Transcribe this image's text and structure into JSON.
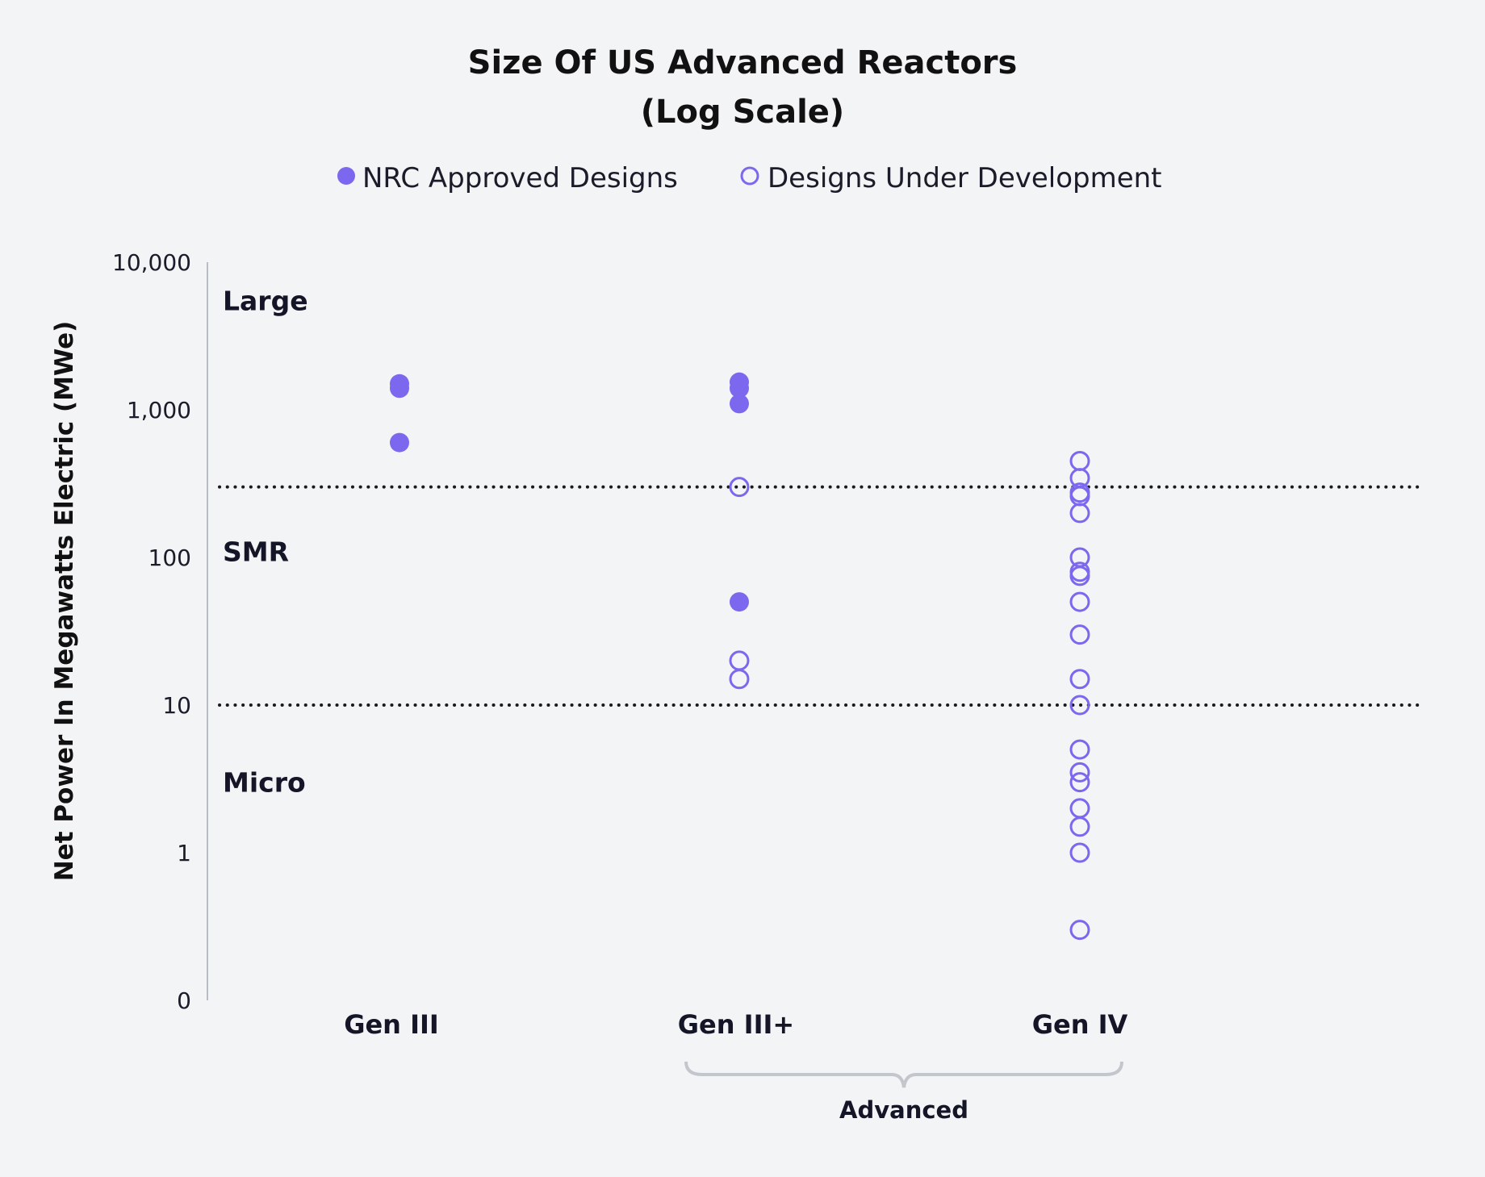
{
  "chart_data": {
    "type": "scatter",
    "title_line1": "Size Of US Advanced Reactors",
    "title_line2": "(Log Scale)",
    "ylabel": "Net Power In Megawatts Electric (MWe)",
    "yscale": "log",
    "ylim": [
      0.1,
      10000
    ],
    "yticks": [
      {
        "value": 10000,
        "label": "10,000"
      },
      {
        "value": 1000,
        "label": "1,000"
      },
      {
        "value": 100,
        "label": "100"
      },
      {
        "value": 10,
        "label": "10"
      },
      {
        "value": 1,
        "label": "1"
      },
      {
        "value": 0.1,
        "label": "0"
      }
    ],
    "categories": [
      "Gen III",
      "Gen III+",
      "Gen IV"
    ],
    "thresholds": [
      300,
      10
    ],
    "zones": [
      {
        "label": "Large",
        "value": 5500
      },
      {
        "label": "SMR",
        "value": 110
      },
      {
        "label": "Micro",
        "value": 3
      }
    ],
    "bracket": {
      "label": "Advanced",
      "from": "Gen III+",
      "to": "Gen IV"
    },
    "legend_position": "top-center",
    "series": [
      {
        "name": "NRC Approved Designs",
        "style": "filled",
        "color": "#7b68ee",
        "points": [
          {
            "x": "Gen III",
            "y": 1500
          },
          {
            "x": "Gen III",
            "y": 1400
          },
          {
            "x": "Gen III",
            "y": 600
          },
          {
            "x": "Gen III+",
            "y": 1540
          },
          {
            "x": "Gen III+",
            "y": 1400
          },
          {
            "x": "Gen III+",
            "y": 1100
          },
          {
            "x": "Gen III+",
            "y": 50
          }
        ]
      },
      {
        "name": "Designs Under Development",
        "style": "open",
        "color": "#7b68ee",
        "points": [
          {
            "x": "Gen III+",
            "y": 300
          },
          {
            "x": "Gen III+",
            "y": 20
          },
          {
            "x": "Gen III+",
            "y": 15
          },
          {
            "x": "Gen IV",
            "y": 450
          },
          {
            "x": "Gen IV",
            "y": 345
          },
          {
            "x": "Gen IV",
            "y": 275
          },
          {
            "x": "Gen IV",
            "y": 260
          },
          {
            "x": "Gen IV",
            "y": 200
          },
          {
            "x": "Gen IV",
            "y": 100
          },
          {
            "x": "Gen IV",
            "y": 80
          },
          {
            "x": "Gen IV",
            "y": 75
          },
          {
            "x": "Gen IV",
            "y": 50
          },
          {
            "x": "Gen IV",
            "y": 30
          },
          {
            "x": "Gen IV",
            "y": 15
          },
          {
            "x": "Gen IV",
            "y": 10
          },
          {
            "x": "Gen IV",
            "y": 5
          },
          {
            "x": "Gen IV",
            "y": 3.5
          },
          {
            "x": "Gen IV",
            "y": 3
          },
          {
            "x": "Gen IV",
            "y": 2
          },
          {
            "x": "Gen IV",
            "y": 1.5
          },
          {
            "x": "Gen IV",
            "y": 1
          },
          {
            "x": "Gen IV",
            "y": 0.3
          }
        ]
      }
    ]
  }
}
